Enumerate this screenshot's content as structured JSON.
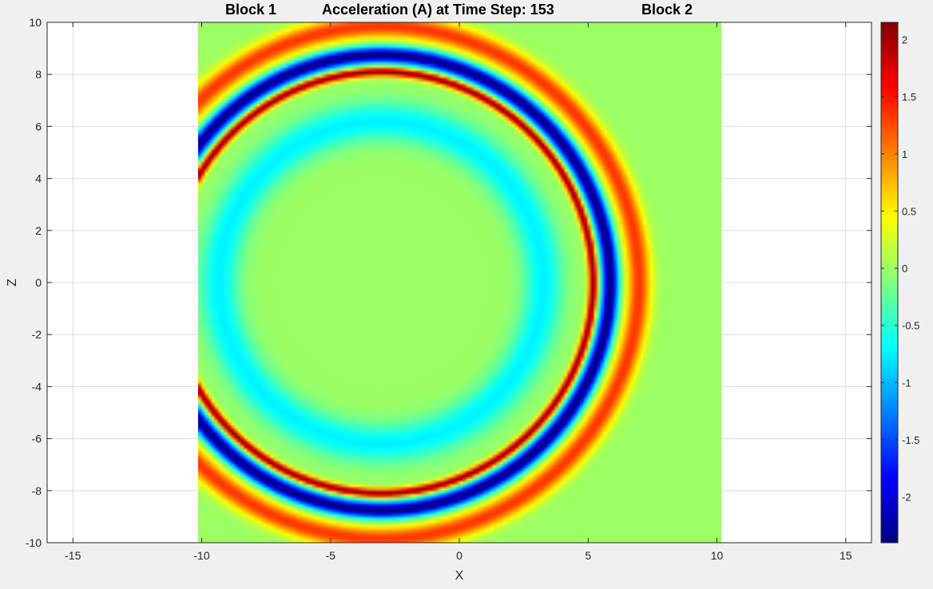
{
  "figure": {
    "title": "Acceleration (A) at Time Step: 153",
    "block_labels": [
      "Block 1",
      "Block 2"
    ]
  },
  "chart_data": {
    "type": "heatmap",
    "title": "Acceleration (A) at Time Step: 153",
    "xlabel": "X",
    "ylabel": "Z",
    "xlim": [
      -16,
      16
    ],
    "ylim": [
      -10,
      10
    ],
    "xticks": [
      -15,
      -10,
      -5,
      0,
      5,
      10,
      15
    ],
    "yticks": [
      10,
      8,
      6,
      4,
      2,
      0,
      -2,
      -4,
      -6,
      -8,
      -10
    ],
    "grid": true,
    "colormap": "jet",
    "clim": [
      -2.4,
      2.15
    ],
    "colorbar_ticks": [
      2,
      1.5,
      1,
      0.5,
      0,
      -0.5,
      -1,
      -1.5,
      -2
    ],
    "field_extent": {
      "x": [
        -10,
        10
      ],
      "z": [
        -10,
        10
      ]
    },
    "annotations": [
      "Block 1",
      "Block 2"
    ],
    "wavefront": {
      "center": [
        -3,
        0
      ],
      "rings": [
        {
          "radius": 6.2,
          "peak_value": -0.75
        },
        {
          "radius": 8.1,
          "peak_value": 2.15
        },
        {
          "radius": 8.75,
          "peak_value": -2.4
        },
        {
          "radius": 9.85,
          "peak_value": 1.35
        }
      ]
    }
  }
}
